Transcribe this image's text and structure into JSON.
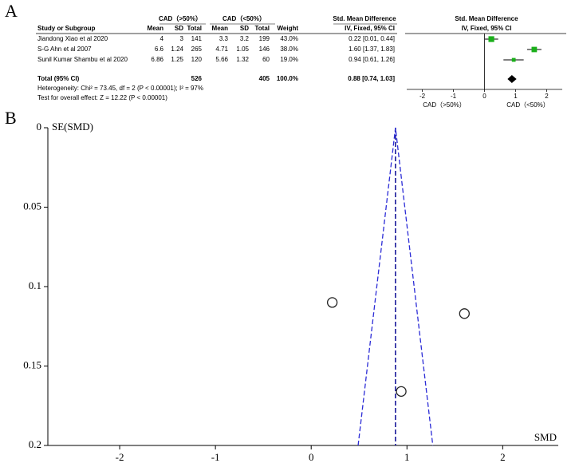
{
  "panel_labels": [
    "A",
    "B"
  ],
  "table": {
    "group_headers": [
      "CAD（>50%）",
      "CAD（<50%）",
      "Std. Mean Difference"
    ],
    "columns": [
      "Study or Subgroup",
      "Mean",
      "SD",
      "Total",
      "Mean",
      "SD",
      "Total",
      "Weight",
      "IV, Fixed, 95% CI"
    ],
    "rows": [
      [
        "Jiandong Xiao et al 2020",
        "4",
        "3",
        "141",
        "3.3",
        "3.2",
        "199",
        "43.0%",
        "0.22 [0.01, 0.44]"
      ],
      [
        "S-G Ahn et al 2007",
        "6.6",
        "1.24",
        "265",
        "4.71",
        "1.05",
        "146",
        "38.0%",
        "1.60 [1.37, 1.83]"
      ],
      [
        "Sunil Kumar Shambu et al 2020",
        "6.86",
        "1.25",
        "120",
        "5.66",
        "1.32",
        "60",
        "19.0%",
        "0.94 [0.61, 1.26]"
      ]
    ],
    "total": {
      "label": "Total (95% CI)",
      "total1": "526",
      "total2": "405",
      "weight": "100.0%",
      "ci": "0.88 [0.74, 1.03]"
    },
    "notes": [
      "Heterogeneity: Chi² = 73.45, df = 2 (P < 0.00001); I² = 97%",
      "Test for overall effect: Z = 12.22 (P < 0.00001)"
    ]
  },
  "chart_data": [
    {
      "type": "forest",
      "title": "Std. Mean Difference",
      "subtitle": "IV, Fixed, 95% CI",
      "values": [
        0.22,
        1.6,
        0.94
      ],
      "ci_low": [
        0.01,
        1.37,
        0.61
      ],
      "ci_high": [
        0.44,
        1.83,
        1.26
      ],
      "weights": [
        43,
        38,
        19
      ],
      "color": "#1aaf1a",
      "total": {
        "value": 0.88,
        "ci_low": 0.74,
        "ci_high": 1.03,
        "color": "#000000"
      },
      "xlim": [
        -2.5,
        2.5
      ],
      "xticks": [
        -2,
        -1,
        0,
        1,
        2
      ],
      "xlabels": [
        "CAD（>50%）",
        "CAD（<50%）"
      ]
    },
    {
      "type": "scatter",
      "x_label": "SMD",
      "y_label": "SE(SMD)",
      "x": [
        0.22,
        1.6,
        0.94
      ],
      "values": [
        0.11,
        0.117,
        0.166
      ],
      "xlim": [
        -2.75,
        2.58
      ],
      "ylim": [
        0,
        0.2
      ],
      "xticks": [
        -2,
        -1,
        0,
        1,
        2
      ],
      "yticks": [
        0,
        0.05,
        0.1,
        0.15,
        0.2
      ],
      "y_inverted": true,
      "reference_line": {
        "x": 0.88,
        "color": "#1a1a9a"
      },
      "funnel": {
        "x": [
          0.49,
          0.88,
          1.27
        ],
        "y": [
          0.2,
          0,
          0.2
        ],
        "color": "#2b2bd6"
      }
    }
  ]
}
